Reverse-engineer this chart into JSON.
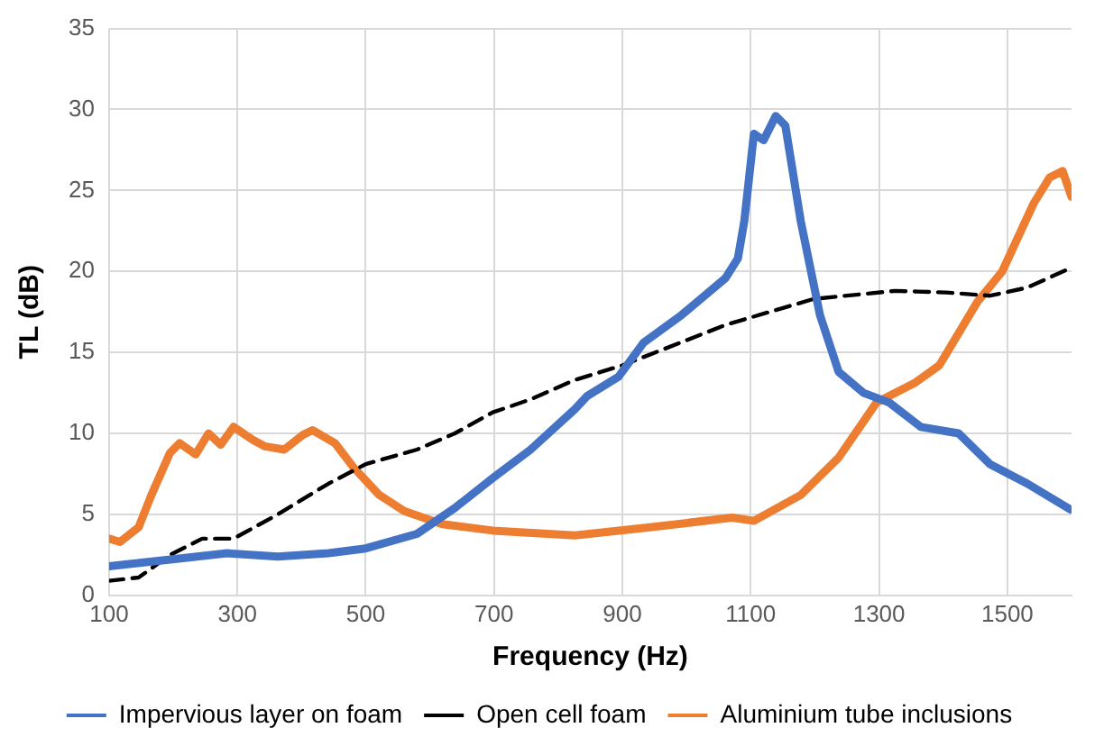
{
  "chart_data": {
    "type": "line",
    "xlabel": "Frequency (Hz)",
    "ylabel": "TL (dB)",
    "xlim": [
      100,
      1600
    ],
    "xticks": [
      100,
      300,
      500,
      700,
      900,
      1100,
      1300,
      1500
    ],
    "ylim": [
      0,
      35
    ],
    "yticks": [
      0,
      5,
      10,
      15,
      20,
      25,
      30,
      35
    ],
    "grid": true,
    "legend": "bottom",
    "marker": "none",
    "series": [
      {
        "name": "Impervious layer on foam",
        "color": "#4472c4",
        "line_style": "solid",
        "x": [
          100,
          215,
          284,
          363,
          442,
          500,
          580,
          639,
          700,
          757,
          826,
          845,
          894,
          933,
          992,
          1061,
          1080,
          1090,
          1105,
          1120,
          1139,
          1154,
          1178,
          1208,
          1237,
          1276,
          1316,
          1365,
          1424,
          1473,
          1531,
          1598
        ],
        "values": [
          1.8,
          2.3,
          2.6,
          2.4,
          2.6,
          2.9,
          3.8,
          5.4,
          7.3,
          9.0,
          11.5,
          12.3,
          13.5,
          15.6,
          17.3,
          19.6,
          20.8,
          23.1,
          28.5,
          28.1,
          29.6,
          29.0,
          23.1,
          17.3,
          13.8,
          12.5,
          11.9,
          10.4,
          10.0,
          8.1,
          6.9,
          5.3
        ]
      },
      {
        "name": "Open cell foam",
        "color": "#000000",
        "line_style": "dashed",
        "x": [
          100,
          146,
          195,
          245,
          294,
          363,
          442,
          500,
          580,
          639,
          698,
          757,
          826,
          900,
          1061,
          1198,
          1325,
          1404,
          1473,
          1531,
          1598
        ],
        "values": [
          0.9,
          1.1,
          2.5,
          3.5,
          3.5,
          5.0,
          6.9,
          8.1,
          9.0,
          10.0,
          11.3,
          12.1,
          13.3,
          14.2,
          16.7,
          18.3,
          18.8,
          18.7,
          18.5,
          19.0,
          20.2
        ]
      },
      {
        "name": "Aluminium tube inclusions",
        "color": "#ed7d31",
        "line_style": "solid",
        "x": [
          100,
          117,
          146,
          166,
          195,
          210,
          235,
          255,
          274,
          294,
          324,
          343,
          373,
          402,
          417,
          452,
          481,
          521,
          560,
          619,
          698,
          826,
          943,
          1071,
          1105,
          1178,
          1237,
          1296,
          1355,
          1394,
          1453,
          1492,
          1541,
          1566,
          1586,
          1600
        ],
        "values": [
          3.5,
          3.3,
          4.2,
          6.2,
          8.8,
          9.4,
          8.7,
          10.0,
          9.3,
          10.4,
          9.6,
          9.2,
          9.0,
          9.9,
          10.2,
          9.4,
          7.9,
          6.2,
          5.2,
          4.4,
          4.0,
          3.7,
          4.2,
          4.8,
          4.6,
          6.2,
          8.5,
          11.9,
          13.1,
          14.2,
          18.1,
          20.0,
          24.2,
          25.8,
          26.2,
          24.6
        ]
      }
    ]
  }
}
